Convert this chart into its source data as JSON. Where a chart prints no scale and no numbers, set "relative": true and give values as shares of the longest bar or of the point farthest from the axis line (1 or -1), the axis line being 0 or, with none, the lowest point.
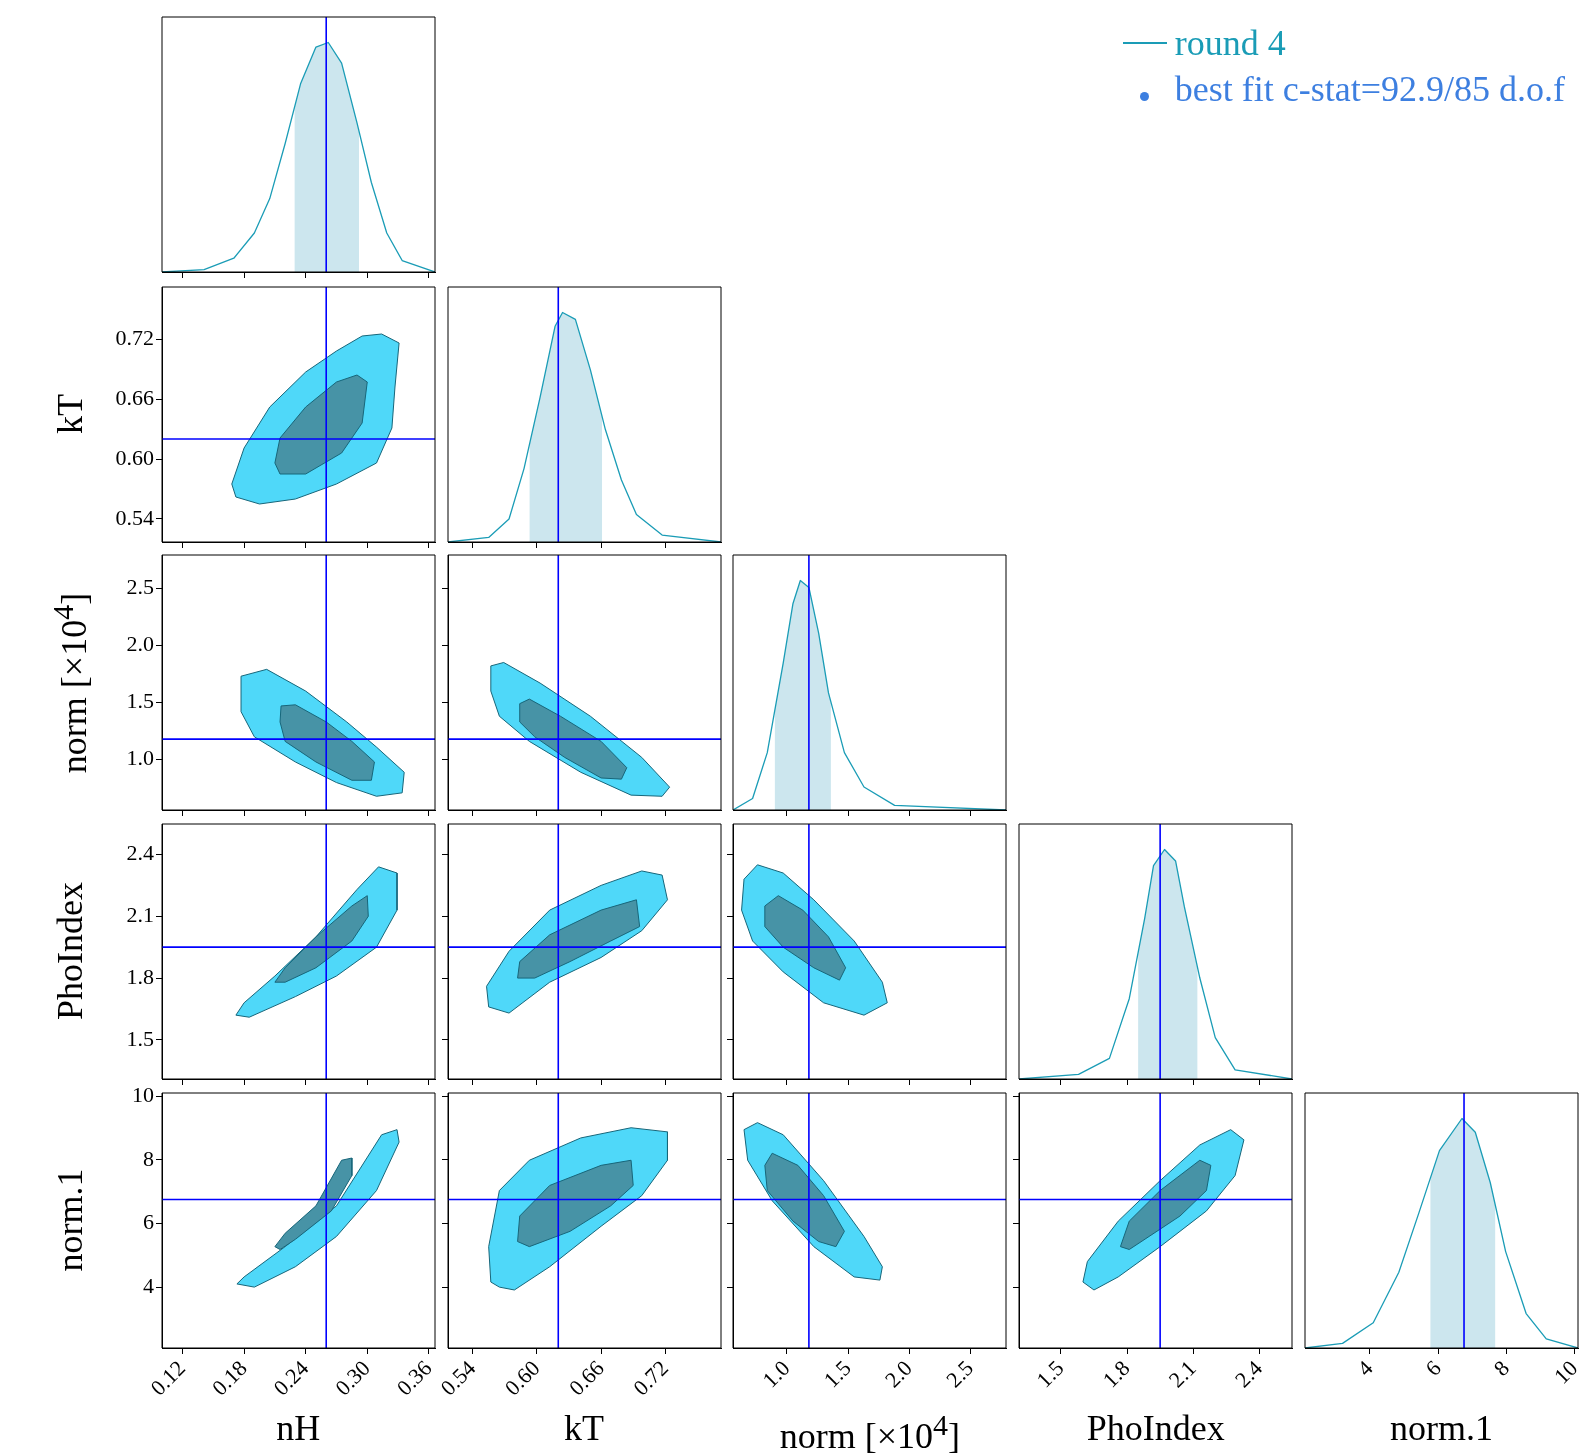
{
  "chart_data": [
    {
      "type": "line",
      "relative": true,
      "legend": "top right",
      "tick_labels": false,
      "xlim": [
        0.1,
        0.366
      ],
      "xticks": [
        0.12,
        0.18,
        0.24,
        0.3,
        0.36
      ],
      "series": [
        {
          "type": "area",
          "color": "#cce6ee",
          "x": [
            0.229,
            0.235,
            0.25,
            0.262,
            0.275,
            0.29,
            0.292
          ],
          "values": [
            0.716,
            0.82,
            0.98,
            1.0,
            0.91,
            0.65,
            0.613
          ]
        },
        {
          "name": "round 4",
          "color": "#1a9cb6",
          "x": [
            0.1,
            0.141,
            0.17,
            0.19,
            0.205,
            0.22,
            0.235,
            0.25,
            0.262,
            0.275,
            0.29,
            0.304,
            0.319,
            0.334,
            0.366
          ],
          "values": [
            0,
            0.01,
            0.06,
            0.17,
            0.32,
            0.56,
            0.82,
            0.98,
            1.0,
            0.91,
            0.65,
            0.39,
            0.17,
            0.05,
            0
          ]
        }
      ],
      "annotations": [
        "best fit c-stat=92.9/85 d.o.f"
      ],
      "ref_lines": [
        {
          "axis": "x",
          "value": 0.26,
          "color": "#0000ff"
        }
      ]
    },
    {
      "type": "area",
      "ylabel": "kT",
      "tick_labels": "y",
      "xlim": [
        0.1,
        0.366
      ],
      "ylim": [
        0.517,
        0.772
      ],
      "xticks": [
        0.12,
        0.18,
        0.24,
        0.3,
        0.36
      ],
      "yticks": [
        0.54,
        {
          "value": 0.6,
          "label": "0.60"
        },
        0.66,
        0.72
      ],
      "series": [
        {
          "color": "#4fd8f9",
          "x": [
            0.168,
            0.172,
            0.195,
            0.23,
            0.27,
            0.309,
            0.324,
            0.327,
            0.331,
            0.314,
            0.295,
            0.27,
            0.24,
            0.205,
            0.18
          ],
          "values": [
            0.575,
            0.562,
            0.555,
            0.56,
            0.575,
            0.596,
            0.631,
            0.672,
            0.716,
            0.725,
            0.723,
            0.708,
            0.687,
            0.652,
            0.611
          ]
        },
        {
          "color": "#4793a6",
          "x": [
            0.21,
            0.215,
            0.24,
            0.275,
            0.295,
            0.3,
            0.29,
            0.27,
            0.24,
            0.215
          ],
          "values": [
            0.596,
            0.585,
            0.585,
            0.606,
            0.636,
            0.677,
            0.684,
            0.677,
            0.652,
            0.621
          ]
        }
      ],
      "ref_lines": [
        {
          "axis": "x",
          "value": 0.26,
          "color": "#0000ff"
        },
        {
          "axis": "y",
          "value": 0.62,
          "color": "#0000ff"
        }
      ]
    },
    {
      "type": "line",
      "relative": true,
      "tick_labels": false,
      "xlim": [
        0.517,
        0.772
      ],
      "xticks": [
        0.54,
        0.6,
        0.66,
        0.72
      ],
      "series": [
        {
          "type": "area",
          "color": "#cce6ee",
          "x": [
            0.593,
            0.603,
            0.617,
            0.624,
            0.636,
            0.65,
            0.661
          ],
          "values": [
            0.423,
            0.63,
            0.94,
            1.0,
            0.97,
            0.75,
            0.546
          ]
        },
        {
          "color": "#1a9cb6",
          "x": [
            0.517,
            0.555,
            0.574,
            0.588,
            0.603,
            0.617,
            0.624,
            0.636,
            0.65,
            0.664,
            0.679,
            0.693,
            0.717,
            0.772
          ],
          "values": [
            0,
            0.02,
            0.1,
            0.32,
            0.63,
            0.94,
            1.0,
            0.97,
            0.75,
            0.49,
            0.27,
            0.12,
            0.03,
            0
          ]
        }
      ],
      "ref_lines": [
        {
          "axis": "x",
          "value": 0.62,
          "color": "#0000ff"
        }
      ]
    },
    {
      "type": "area",
      "ylabel": "norm [×10$^{4}$]",
      "tick_labels": "y",
      "xlim": [
        0.1,
        0.366
      ],
      "ylim": [
        0.56,
        2.79
      ],
      "xticks": [
        0.12,
        0.18,
        0.24,
        0.3,
        0.36
      ],
      "yticks": [
        {
          "value": 1,
          "label": "1.0"
        },
        1.5,
        {
          "value": 2,
          "label": "2.0"
        },
        2.5
      ],
      "series": [
        {
          "color": "#4fd8f9",
          "x": [
            0.177,
            0.202,
            0.24,
            0.28,
            0.309,
            0.336,
            0.334,
            0.309,
            0.27,
            0.23,
            0.19,
            0.177
          ],
          "values": [
            1.73,
            1.79,
            1.6,
            1.33,
            1.11,
            0.89,
            0.71,
            0.68,
            0.8,
            0.98,
            1.2,
            1.42
          ]
        },
        {
          "color": "#4793a6",
          "x": [
            0.216,
            0.23,
            0.26,
            0.285,
            0.307,
            0.304,
            0.285,
            0.25,
            0.22,
            0.215
          ],
          "values": [
            1.47,
            1.48,
            1.33,
            1.16,
            0.98,
            0.82,
            0.82,
            0.98,
            1.16,
            1.33
          ]
        }
      ],
      "ref_lines": [
        {
          "axis": "x",
          "value": 0.26,
          "color": "#0000ff"
        },
        {
          "axis": "y",
          "value": 1.18,
          "color": "#0000ff"
        }
      ]
    },
    {
      "type": "area",
      "tick_labels": false,
      "xlim": [
        0.517,
        0.772
      ],
      "ylim": [
        0.56,
        2.79
      ],
      "xticks": [
        0.54,
        0.6,
        0.66,
        0.72
      ],
      "yticks": [
        1,
        1.5,
        2,
        2.5
      ],
      "series": [
        {
          "color": "#4fd8f9",
          "x": [
            0.557,
            0.569,
            0.603,
            0.65,
            0.698,
            0.724,
            0.717,
            0.688,
            0.641,
            0.593,
            0.565,
            0.557
          ],
          "values": [
            1.82,
            1.85,
            1.67,
            1.38,
            1.02,
            0.76,
            0.68,
            0.69,
            0.89,
            1.16,
            1.38,
            1.6
          ]
        },
        {
          "color": "#4793a6",
          "x": [
            0.584,
            0.593,
            0.622,
            0.66,
            0.684,
            0.679,
            0.66,
            0.626,
            0.598,
            0.584
          ],
          "values": [
            1.49,
            1.53,
            1.38,
            1.16,
            0.93,
            0.83,
            0.84,
            1.02,
            1.2,
            1.33
          ]
        }
      ],
      "ref_lines": [
        {
          "axis": "x",
          "value": 0.62,
          "color": "#0000ff"
        },
        {
          "axis": "y",
          "value": 1.18,
          "color": "#0000ff"
        }
      ]
    },
    {
      "type": "line",
      "relative": true,
      "tick_labels": false,
      "xlim": [
        0.56,
        2.79
      ],
      "xticks": [
        1,
        1.5,
        2,
        2.5
      ],
      "series": [
        {
          "type": "area",
          "color": "#cce6ee",
          "x": [
            0.9,
            0.97,
            1.05,
            1.11,
            1.18,
            1.26,
            1.34,
            1.36
          ],
          "values": [
            0.43,
            0.64,
            0.9,
            1.0,
            0.97,
            0.77,
            0.51,
            0.47
          ]
        },
        {
          "color": "#1a9cb6",
          "x": [
            0.56,
            0.72,
            0.84,
            0.97,
            1.05,
            1.11,
            1.18,
            1.26,
            1.34,
            1.47,
            1.63,
            1.88,
            2.79
          ],
          "values": [
            0,
            0.05,
            0.25,
            0.64,
            0.9,
            1.0,
            0.97,
            0.77,
            0.51,
            0.25,
            0.1,
            0.02,
            0
          ]
        }
      ],
      "ref_lines": [
        {
          "axis": "x",
          "value": 1.18,
          "color": "#0000ff"
        }
      ]
    },
    {
      "type": "area",
      "ylabel": "PhoIndex",
      "tick_labels": "y",
      "xlim": [
        0.1,
        0.366
      ],
      "ylim": [
        1.31,
        2.548
      ],
      "xticks": [
        0.12,
        0.18,
        0.24,
        0.3,
        0.36
      ],
      "yticks": [
        1.5,
        1.8,
        2.1,
        2.4
      ],
      "series": [
        {
          "color": "#4fd8f9",
          "x": [
            0.172,
            0.18,
            0.21,
            0.25,
            0.29,
            0.311,
            0.329,
            0.329,
            0.309,
            0.27,
            0.23,
            0.185
          ],
          "values": [
            1.62,
            1.68,
            1.81,
            2.0,
            2.23,
            2.34,
            2.31,
            2.13,
            1.95,
            1.81,
            1.71,
            1.61
          ]
        },
        {
          "color": "#4793a6",
          "x": [
            0.21,
            0.22,
            0.25,
            0.285,
            0.3,
            0.301,
            0.285,
            0.25,
            0.22
          ],
          "values": [
            1.78,
            1.85,
            2.0,
            2.15,
            2.2,
            2.1,
            1.98,
            1.85,
            1.78
          ]
        }
      ],
      "ref_lines": [
        {
          "axis": "x",
          "value": 0.26,
          "color": "#0000ff"
        },
        {
          "axis": "y",
          "value": 1.95,
          "color": "#0000ff"
        }
      ]
    },
    {
      "type": "area",
      "tick_labels": false,
      "xlim": [
        0.517,
        0.772
      ],
      "ylim": [
        1.31,
        2.548
      ],
      "xticks": [
        0.54,
        0.6,
        0.66,
        0.72
      ],
      "yticks": [
        1.5,
        1.8,
        2.1,
        2.4
      ],
      "series": [
        {
          "color": "#4fd8f9",
          "x": [
            0.555,
            0.553,
            0.574,
            0.612,
            0.66,
            0.698,
            0.717,
            0.722,
            0.698,
            0.66,
            0.612,
            0.574
          ],
          "values": [
            1.66,
            1.76,
            1.93,
            2.13,
            2.25,
            2.32,
            2.3,
            2.18,
            2.03,
            1.9,
            1.78,
            1.63
          ]
        },
        {
          "color": "#4793a6",
          "x": [
            0.582,
            0.584,
            0.612,
            0.66,
            0.693,
            0.696,
            0.669,
            0.631,
            0.598
          ],
          "values": [
            1.8,
            1.88,
            2.01,
            2.13,
            2.18,
            2.05,
            1.98,
            1.88,
            1.8
          ]
        }
      ],
      "ref_lines": [
        {
          "axis": "x",
          "value": 0.62,
          "color": "#0000ff"
        },
        {
          "axis": "y",
          "value": 1.95,
          "color": "#0000ff"
        }
      ]
    },
    {
      "type": "area",
      "tick_labels": false,
      "xlim": [
        0.56,
        2.79
      ],
      "ylim": [
        1.31,
        2.548
      ],
      "xticks": [
        1,
        1.5,
        2,
        2.5
      ],
      "yticks": [
        1.5,
        1.8,
        2.1,
        2.4
      ],
      "series": [
        {
          "color": "#4fd8f9",
          "x": [
            0.65,
            0.76,
            0.97,
            1.22,
            1.55,
            1.78,
            1.82,
            1.63,
            1.3,
            0.97,
            0.72,
            0.63
          ],
          "values": [
            2.28,
            2.35,
            2.31,
            2.18,
            1.98,
            1.78,
            1.68,
            1.62,
            1.68,
            1.83,
            1.98,
            2.13
          ]
        },
        {
          "color": "#4793a6",
          "x": [
            0.82,
            0.93,
            1.13,
            1.34,
            1.48,
            1.43,
            1.22,
            0.97,
            0.82
          ],
          "values": [
            2.15,
            2.2,
            2.13,
            2.0,
            1.85,
            1.79,
            1.85,
            1.95,
            2.05
          ]
        }
      ],
      "ref_lines": [
        {
          "axis": "x",
          "value": 1.18,
          "color": "#0000ff"
        },
        {
          "axis": "y",
          "value": 1.95,
          "color": "#0000ff"
        }
      ]
    },
    {
      "type": "line",
      "relative": true,
      "tick_labels": false,
      "xlim": [
        1.31,
        2.548
      ],
      "xticks": [
        1.5,
        1.8,
        2.1,
        2.4
      ],
      "series": [
        {
          "type": "area",
          "color": "#cce6ee",
          "x": [
            1.85,
            1.88,
            1.92,
            1.97,
            2.02,
            2.06,
            2.12
          ],
          "values": [
            0.55,
            0.7,
            0.93,
            1.0,
            0.95,
            0.75,
            0.48
          ]
        },
        {
          "color": "#1a9cb6",
          "x": [
            1.31,
            1.58,
            1.72,
            1.81,
            1.88,
            1.92,
            1.97,
            2.02,
            2.06,
            2.13,
            2.2,
            2.29,
            2.548
          ],
          "values": [
            0,
            0.02,
            0.09,
            0.35,
            0.7,
            0.93,
            1.0,
            0.95,
            0.75,
            0.44,
            0.18,
            0.04,
            0
          ]
        }
      ],
      "ref_lines": [
        {
          "axis": "x",
          "value": 1.95,
          "color": "#0000ff"
        }
      ]
    },
    {
      "type": "area",
      "xlabel": "nH",
      "ylabel": "norm.1",
      "xlim": [
        0.1,
        0.366
      ],
      "ylim": [
        2.1,
        10.1
      ],
      "xticks": [
        0.12,
        0.18,
        0.24,
        {
          "value": 0.3,
          "label": "0.30"
        },
        0.36
      ],
      "yticks": [
        4,
        6,
        8,
        10
      ],
      "series": [
        {
          "color": "#4fd8f9",
          "x": [
            0.173,
            0.18,
            0.22,
            0.27,
            0.314,
            0.329,
            0.331,
            0.309,
            0.27,
            0.23,
            0.19
          ],
          "values": [
            4.11,
            4.33,
            5.28,
            6.56,
            8.79,
            8.95,
            8.56,
            7.04,
            5.6,
            4.65,
            4.01
          ]
        },
        {
          "color": "#4793a6",
          "x": [
            0.21,
            0.22,
            0.25,
            0.275,
            0.285,
            0.285,
            0.265,
            0.23,
            0.215
          ],
          "values": [
            5.28,
            5.7,
            6.56,
            7.99,
            8.06,
            7.51,
            6.4,
            5.51,
            5.19
          ]
        }
      ],
      "ref_lines": [
        {
          "axis": "x",
          "value": 0.26,
          "color": "#0000ff"
        },
        {
          "axis": "y",
          "value": 6.76,
          "color": "#0000ff"
        }
      ]
    },
    {
      "type": "area",
      "xlabel": "kT",
      "tick_labels": "x",
      "xlim": [
        0.517,
        0.772
      ],
      "ylim": [
        2.1,
        10.1
      ],
      "xticks": [
        0.54,
        {
          "value": 0.6,
          "label": "0.60"
        },
        0.66,
        0.72
      ],
      "yticks": [
        4,
        6,
        8,
        10
      ],
      "series": [
        {
          "color": "#4fd8f9",
          "x": [
            0.557,
            0.555,
            0.565,
            0.593,
            0.641,
            0.688,
            0.722,
            0.722,
            0.698,
            0.66,
            0.612,
            0.579,
            0.565
          ],
          "values": [
            4.17,
            5.28,
            7.04,
            7.99,
            8.69,
            9.01,
            8.88,
            7.99,
            6.88,
            5.92,
            4.65,
            3.92,
            4.01
          ]
        },
        {
          "color": "#4793a6",
          "x": [
            0.582,
            0.584,
            0.612,
            0.66,
            0.688,
            0.69,
            0.669,
            0.631,
            0.593
          ],
          "values": [
            5.44,
            6.24,
            7.2,
            7.83,
            7.99,
            7.2,
            6.56,
            5.76,
            5.28
          ]
        }
      ],
      "ref_lines": [
        {
          "axis": "x",
          "value": 0.62,
          "color": "#0000ff"
        },
        {
          "axis": "y",
          "value": 6.76,
          "color": "#0000ff"
        }
      ]
    },
    {
      "type": "area",
      "xlabel": "norm [×10$^{4}$]",
      "tick_labels": "x",
      "xlim": [
        0.56,
        2.79
      ],
      "ylim": [
        2.1,
        10.1
      ],
      "xticks": [
        {
          "value": 1,
          "label": "1.0"
        },
        1.5,
        {
          "value": 2,
          "label": "2.0"
        },
        2.5
      ],
      "yticks": [
        4,
        6,
        8,
        10
      ],
      "series": [
        {
          "color": "#4fd8f9",
          "x": [
            0.65,
            0.76,
            0.97,
            1.3,
            1.63,
            1.78,
            1.76,
            1.55,
            1.22,
            0.88,
            0.68
          ],
          "values": [
            8.95,
            9.17,
            8.79,
            7.35,
            5.6,
            4.65,
            4.23,
            4.33,
            5.28,
            6.72,
            7.99
          ]
        },
        {
          "color": "#4793a6",
          "x": [
            0.82,
            0.88,
            1.09,
            1.3,
            1.47,
            1.4,
            1.26,
            1.05,
            0.84
          ],
          "values": [
            7.83,
            8.21,
            7.83,
            6.88,
            5.76,
            5.28,
            5.44,
            6.08,
            7.04
          ]
        }
      ],
      "ref_lines": [
        {
          "axis": "x",
          "value": 1.18,
          "color": "#0000ff"
        },
        {
          "axis": "y",
          "value": 6.76,
          "color": "#0000ff"
        }
      ]
    },
    {
      "type": "area",
      "xlabel": "PhoIndex",
      "tick_labels": "x",
      "xlim": [
        1.31,
        2.548
      ],
      "ylim": [
        2.1,
        10.1
      ],
      "xticks": [
        1.5,
        1.8,
        2.1,
        2.4
      ],
      "yticks": [
        4,
        6,
        8,
        10
      ],
      "series": [
        {
          "color": "#4fd8f9",
          "x": [
            1.6,
            1.62,
            1.76,
            1.95,
            2.13,
            2.27,
            2.33,
            2.29,
            2.16,
            1.95,
            1.76,
            1.65
          ],
          "values": [
            4.17,
            4.81,
            6.08,
            7.35,
            8.47,
            8.95,
            8.63,
            7.51,
            6.4,
            5.28,
            4.33,
            3.92
          ]
        },
        {
          "color": "#4793a6",
          "x": [
            1.77,
            1.81,
            1.95,
            2.13,
            2.18,
            2.16,
            2.04,
            1.9,
            1.81
          ],
          "values": [
            5.28,
            6.08,
            7.04,
            7.99,
            7.83,
            7.04,
            6.24,
            5.6,
            5.19
          ]
        }
      ],
      "ref_lines": [
        {
          "axis": "x",
          "value": 1.95,
          "color": "#0000ff"
        },
        {
          "axis": "y",
          "value": 6.76,
          "color": "#0000ff"
        }
      ]
    },
    {
      "type": "line",
      "relative": true,
      "xlabel": "norm.1",
      "tick_labels": "x",
      "xlim": [
        2.1,
        10.1
      ],
      "xticks": [
        4,
        6,
        8,
        10
      ],
      "series": [
        {
          "type": "area",
          "color": "#cce6ee",
          "x": [
            5.77,
            6.04,
            6.7,
            7.09,
            7.53,
            7.68
          ],
          "values": [
            0.74,
            0.86,
            1.0,
            0.94,
            0.72,
            0.62
          ]
        },
        {
          "color": "#1a9cb6",
          "x": [
            2.1,
            3.2,
            4.1,
            4.85,
            5.44,
            6.04,
            6.7,
            7.09,
            7.53,
            7.98,
            8.58,
            9.17,
            10.1
          ],
          "values": [
            0,
            0.02,
            0.11,
            0.33,
            0.59,
            0.86,
            1.0,
            0.94,
            0.72,
            0.42,
            0.15,
            0.04,
            0
          ]
        }
      ],
      "ref_lines": [
        {
          "axis": "x",
          "value": 6.76,
          "color": "#0000ff"
        }
      ]
    }
  ]
}
